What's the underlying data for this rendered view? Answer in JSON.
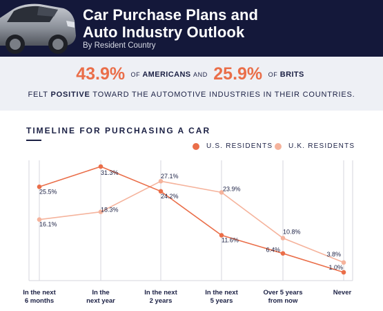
{
  "header": {
    "title": "Car Purchase Plans and\nAuto Industry Outlook",
    "subtitle": "By Resident Country"
  },
  "stats": {
    "us_pct": "43.9%",
    "of1": "OF",
    "americans": "AMERICANS",
    "and": "AND",
    "uk_pct": "25.9%",
    "of2": "OF",
    "brits": "BRITS",
    "note_pre": "FELT",
    "note_bold": "POSITIVE",
    "note_post": "TOWARD THE AUTOMOTIVE INDUSTRIES IN THEIR COUNTRIES."
  },
  "section": {
    "title": "TIMELINE FOR PURCHASING A CAR"
  },
  "colors": {
    "us": "#ea6e49",
    "uk": "#f5b39c",
    "grid": "#d4d6de",
    "text": "#1b2044",
    "header_bg": "#14183a",
    "band_bg": "#eef0f5"
  },
  "chart_data": {
    "type": "line",
    "title": "TIMELINE FOR PURCHASING A CAR",
    "categories": [
      "In the next\n6 months",
      "In the\nnext year",
      "In the next\n2 years",
      "In the next\n5 years",
      "Over 5 years\nfrom now",
      "Never"
    ],
    "series": [
      {
        "name": "U.S. RESIDENTS",
        "values": [
          25.5,
          31.3,
          24.2,
          11.6,
          6.4,
          1.0
        ],
        "labels": [
          "25.5%",
          "31.3%",
          "24.2%",
          "11.6%",
          "6.4%",
          "1.0%"
        ],
        "color": "#ea6e49"
      },
      {
        "name": "U.K. RESIDENTS",
        "values": [
          16.1,
          18.3,
          27.1,
          23.9,
          10.8,
          3.8
        ],
        "labels": [
          "16.1%",
          "18.3%",
          "27.1%",
          "23.9%",
          "10.8%",
          "3.8%"
        ],
        "color": "#f5b39c"
      }
    ],
    "ylim": [
      0,
      31.3
    ],
    "grid": "vertical",
    "legend": "top-right"
  }
}
